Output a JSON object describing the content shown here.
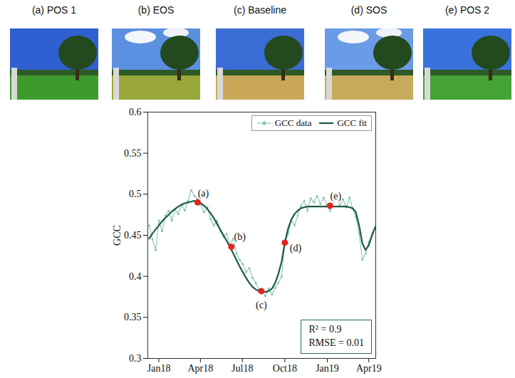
{
  "photos": [
    "(a) POS 1",
    "(b) EOS",
    "(c) Baseline",
    "(d) SOS",
    "(e) POS 2"
  ],
  "chart_data": {
    "type": "line",
    "y_label": "GCC",
    "x": [
      "2017-12-11",
      "2017-12-18",
      "2017-12-25",
      "2018-01-01",
      "2018-01-08",
      "2018-01-15",
      "2018-01-22",
      "2018-01-29",
      "2018-02-05",
      "2018-02-12",
      "2018-02-19",
      "2018-02-26",
      "2018-03-05",
      "2018-03-12",
      "2018-03-19",
      "2018-03-26",
      "2018-04-02",
      "2018-04-09",
      "2018-04-16",
      "2018-04-23",
      "2018-04-30",
      "2018-05-07",
      "2018-05-14",
      "2018-05-21",
      "2018-05-28",
      "2018-06-04",
      "2018-06-11",
      "2018-06-18",
      "2018-06-25",
      "2018-07-02",
      "2018-07-09",
      "2018-07-16",
      "2018-07-23",
      "2018-07-30",
      "2018-08-06",
      "2018-08-13",
      "2018-08-20",
      "2018-08-27",
      "2018-09-03",
      "2018-09-10",
      "2018-09-17",
      "2018-09-24",
      "2018-10-01",
      "2018-10-08",
      "2018-10-15",
      "2018-10-22",
      "2018-10-29",
      "2018-11-05",
      "2018-11-12",
      "2018-11-19",
      "2018-11-26",
      "2018-12-03",
      "2018-12-10",
      "2018-12-17",
      "2018-12-24",
      "2018-12-31",
      "2019-01-07",
      "2019-01-14",
      "2019-01-21",
      "2019-01-28",
      "2019-02-04",
      "2019-02-11",
      "2019-02-18",
      "2019-02-25",
      "2019-03-04",
      "2019-03-11",
      "2019-03-18",
      "2019-03-25",
      "2019-04-01",
      "2019-04-08",
      "2019-04-15"
    ],
    "series": [
      {
        "name": "GCC data",
        "color": "#86c5b0",
        "marker": "dot",
        "line_style": "solid",
        "values": [
          0.462,
          0.445,
          0.432,
          0.468,
          0.455,
          0.474,
          0.48,
          0.468,
          0.482,
          0.476,
          0.488,
          0.48,
          0.492,
          0.505,
          0.498,
          0.494,
          0.487,
          0.478,
          0.484,
          0.47,
          0.462,
          0.468,
          0.455,
          0.448,
          0.452,
          0.438,
          0.446,
          0.428,
          0.42,
          0.415,
          0.405,
          0.41,
          0.398,
          0.392,
          0.384,
          0.38,
          0.376,
          0.385,
          0.378,
          0.386,
          0.392,
          0.4,
          0.44,
          0.452,
          0.468,
          0.462,
          0.474,
          0.486,
          0.492,
          0.48,
          0.495,
          0.49,
          0.498,
          0.488,
          0.496,
          0.487,
          0.48,
          0.492,
          0.498,
          0.486,
          0.494,
          0.484,
          0.496,
          0.482,
          0.472,
          0.452,
          0.42,
          0.428,
          0.442,
          0.452,
          0.46
        ]
      },
      {
        "name": "GCC fit",
        "color": "#1d5a45",
        "line_style": "solid",
        "values": [
          0.446,
          0.452,
          0.457,
          0.462,
          0.467,
          0.471,
          0.475,
          0.479,
          0.482,
          0.485,
          0.487,
          0.489,
          0.49,
          0.491,
          0.492,
          0.491,
          0.489,
          0.486,
          0.482,
          0.477,
          0.471,
          0.464,
          0.457,
          0.45,
          0.443,
          0.436,
          0.428,
          0.42,
          0.412,
          0.405,
          0.398,
          0.392,
          0.387,
          0.384,
          0.382,
          0.381,
          0.381,
          0.382,
          0.385,
          0.392,
          0.403,
          0.418,
          0.441,
          0.458,
          0.469,
          0.476,
          0.48,
          0.483,
          0.484,
          0.485,
          0.485,
          0.485,
          0.485,
          0.485,
          0.485,
          0.485,
          0.486,
          0.485,
          0.485,
          0.485,
          0.485,
          0.485,
          0.484,
          0.483,
          0.478,
          0.462,
          0.44,
          0.432,
          0.438,
          0.45,
          0.46
        ]
      }
    ],
    "markers": {
      "color": "#e5231f",
      "points": [
        {
          "label": "(a)",
          "x": "2018-03-26",
          "y": 0.49
        },
        {
          "label": "(b)",
          "x": "2018-06-07",
          "y": 0.436
        },
        {
          "label": "(c)",
          "x": "2018-08-11",
          "y": 0.382
        },
        {
          "label": "(d)",
          "x": "2018-10-01",
          "y": 0.441
        },
        {
          "label": "(e)",
          "x": "2019-01-07",
          "y": 0.486
        }
      ]
    },
    "annotations": [
      "R² = 0.9",
      "RMSE = 0.01"
    ],
    "xlim": [
      "2017-12-08",
      "2019-04-16"
    ],
    "xticks": [
      {
        "value": "2018-01-01",
        "label": "Jan18"
      },
      {
        "value": "2018-04-01",
        "label": "Apr18"
      },
      {
        "value": "2018-07-01",
        "label": "Jul18"
      },
      {
        "value": "2018-10-01",
        "label": "Oct18"
      },
      {
        "value": "2019-01-01",
        "label": "Jan19"
      },
      {
        "value": "2019-04-01",
        "label": "Apr19"
      }
    ],
    "ylim": [
      0.3,
      0.6
    ],
    "yticks": [
      0.3,
      0.35,
      0.4,
      0.45,
      0.5,
      0.55,
      0.6
    ],
    "legend": "top-right",
    "grid": false
  }
}
